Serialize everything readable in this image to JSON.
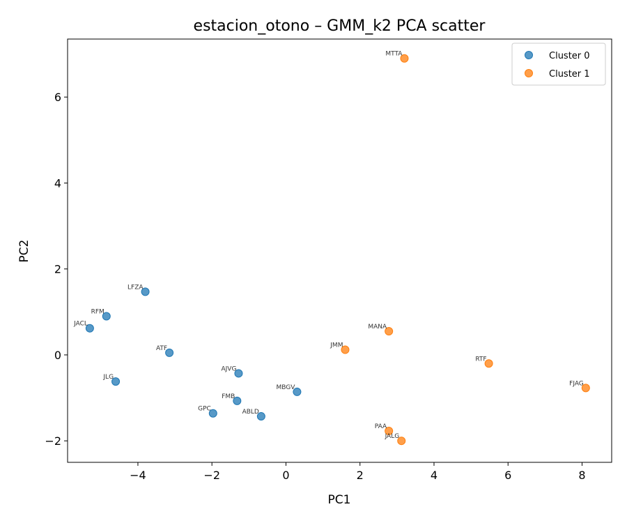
{
  "chart_data": {
    "type": "scatter",
    "title": "estacion_otono – GMM_k2 PCA scatter",
    "xlabel": "PC1",
    "ylabel": "PC2",
    "xlim": [
      -5.9,
      8.8
    ],
    "ylim": [
      -2.5,
      7.35
    ],
    "xticks": [
      -4,
      -2,
      0,
      2,
      4,
      6,
      8
    ],
    "yticks": [
      -2,
      0,
      2,
      4,
      6
    ],
    "legend_position": "top-right",
    "series": [
      {
        "name": "Cluster 0",
        "color": "#1f77b4",
        "points": [
          {
            "label": "LFZA",
            "x": -3.8,
            "y": 1.47
          },
          {
            "label": "RFM",
            "x": -4.85,
            "y": 0.9
          },
          {
            "label": "JACL",
            "x": -5.3,
            "y": 0.62
          },
          {
            "label": "ATF",
            "x": -3.15,
            "y": 0.05
          },
          {
            "label": "JLG",
            "x": -4.6,
            "y": -0.62
          },
          {
            "label": "AJVG",
            "x": -1.28,
            "y": -0.43
          },
          {
            "label": "MBGV",
            "x": 0.3,
            "y": -0.86
          },
          {
            "label": "FMB",
            "x": -1.32,
            "y": -1.07
          },
          {
            "label": "GPC",
            "x": -1.97,
            "y": -1.36
          },
          {
            "label": "ABLD",
            "x": -0.67,
            "y": -1.43
          }
        ]
      },
      {
        "name": "Cluster 1",
        "color": "#ff7f0e",
        "points": [
          {
            "label": "MTTA",
            "x": 3.2,
            "y": 6.9
          },
          {
            "label": "MANA",
            "x": 2.78,
            "y": 0.55
          },
          {
            "label": "JMM",
            "x": 1.6,
            "y": 0.12
          },
          {
            "label": "RTF",
            "x": 5.48,
            "y": -0.2
          },
          {
            "label": "FJAG",
            "x": 8.1,
            "y": -0.77
          },
          {
            "label": "PAA",
            "x": 2.78,
            "y": -1.77
          },
          {
            "label": "JALG",
            "x": 3.12,
            "y": -2.0
          }
        ]
      }
    ]
  }
}
